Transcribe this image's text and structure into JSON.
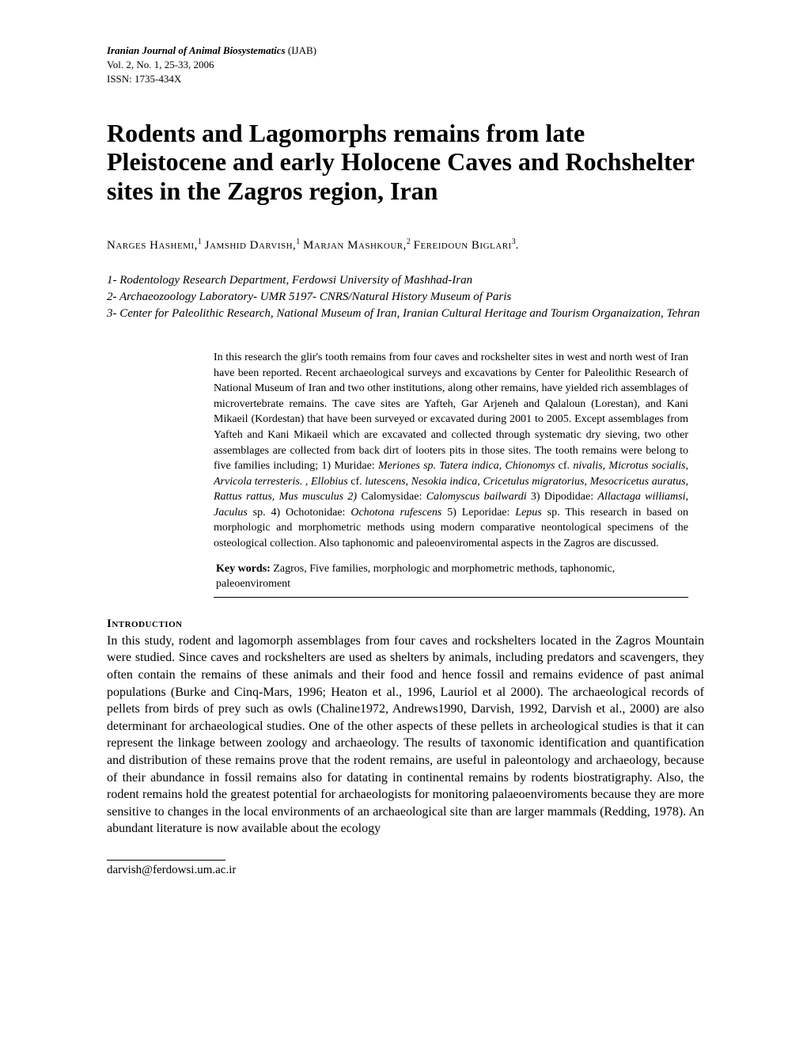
{
  "journal": {
    "name": "Iranian Journal of Animal Biosystematics",
    "abbr": " (IJAB)",
    "volLine": "Vol. 2, No. 1, 25-33, 2006",
    "issnLine": "ISSN: 1735-434X"
  },
  "title": "Rodents and Lagomorphs remains from late Pleistocene and early Holocene Caves and Rochshelter sites in the Zagros region, Iran",
  "authors": {
    "a1": "Narges Hashemi,",
    "s1": "1",
    "a2": " Jamshid Darvish,",
    "s2": "1",
    "a3": " Marjan Mashkour,",
    "s3": "2",
    "a4": " Fereidoun Biglari",
    "s4": "3",
    "end": "."
  },
  "affiliations": {
    "l1": "1- Rodentology Research Department, Ferdowsi University of Mashhad-Iran",
    "l2": "2- Archaeozoology Laboratory- UMR 5197- CNRS/Natural History Museum of Paris",
    "l3": "3- Center for Paleolithic Research, National Museum of Iran, Iranian Cultural Heritage and Tourism Organaization, Tehran"
  },
  "abstract": {
    "p1a": "In this research the glir's tooth remains from four caves and rockshelter sites in west and north west of Iran have been reported. Recent archaeological surveys and excavations by Center for Paleolithic Research of National Museum of Iran and two other institutions, along other remains, have yielded rich assemblages of microvertebrate remains. The cave sites are Yafteh, Gar Arjeneh and Qalaloun (Lorestan), and Kani Mikaeil (Kordestan) that have been surveyed or excavated during 2001 to 2005. Except assemblages from Yafteh and Kani Mikaeil which are excavated and collected through systematic dry sieving, two other assemblages are collected from back dirt of looters pits in those sites. The tooth remains were belong to five families including; 1) Muridae: ",
    "i1": "Meriones sp. Tatera indica, Chionomys",
    "p1b": " cf. ",
    "i2": "nivalis, Microtus socialis, Arvicola terresteris. , Ellobius",
    "p1c": " cf. ",
    "i3": "lutescens, Nesokia indica, Cricetulus migratorius, Mesocricetus auratus, Rattus rattus, Mus musculus 2)",
    "p1d": " Calomysidae: ",
    "i4": "Calomyscus bailwardi",
    "p1e": " 3) Dipodidae: ",
    "i5": "Allactaga williamsi, Jaculus",
    "p1f": " sp. 4) Ochotonidae: ",
    "i6": "Ochotona rufescens",
    "p1g": " 5) Leporidae: ",
    "i7": "Lepus",
    "p1h": " sp. This research in based on morphologic and morphometric methods using modern comparative neontological specimens of the osteological collection. Also taphonomic and paleoenviromental aspects in the Zagros are discussed."
  },
  "keywords": {
    "label": "Key words:",
    "text": " Zagros, Five families, morphologic and morphometric methods, taphonomic, paleoenviroment"
  },
  "intro": {
    "heading": "Introduction",
    "body": "In this study, rodent and lagomorph assemblages from four caves and rockshelters located in the Zagros Mountain were studied. Since caves and rockshelters are used as shelters by animals, including predators and scavengers, they often contain the remains of these animals and their food and hence fossil and remains evidence of past animal populations (Burke and Cinq-Mars, 1996; Heaton et al., 1996, Lauriol et al 2000). The archaeological records of pellets from birds of prey such as owls (Chaline1972, Andrews1990, Darvish, 1992, Darvish et al., 2000) are also determinant for archaeological studies. One of the other aspects of these pellets in archeological studies is that it can represent the linkage between zoology and archaeology. The  results of taxonomic identification and quantification and distribution of these remains prove that the rodent remains, are useful in paleontology and archaeology, because of their  abundance in  fossil remains also for datating  in continental  remains  by  rodents  biostratigraphy. Also, the rodent remains hold the greatest potential for archaeologists for monitoring palaeoenviroments because they are more sensitive to changes in the local environments of an archaeological site than are larger mammals (Redding, 1978).  An abundant literature is now available about the ecology"
  },
  "footer": {
    "email": "darvish@ferdowsi.um.ac.ir"
  }
}
